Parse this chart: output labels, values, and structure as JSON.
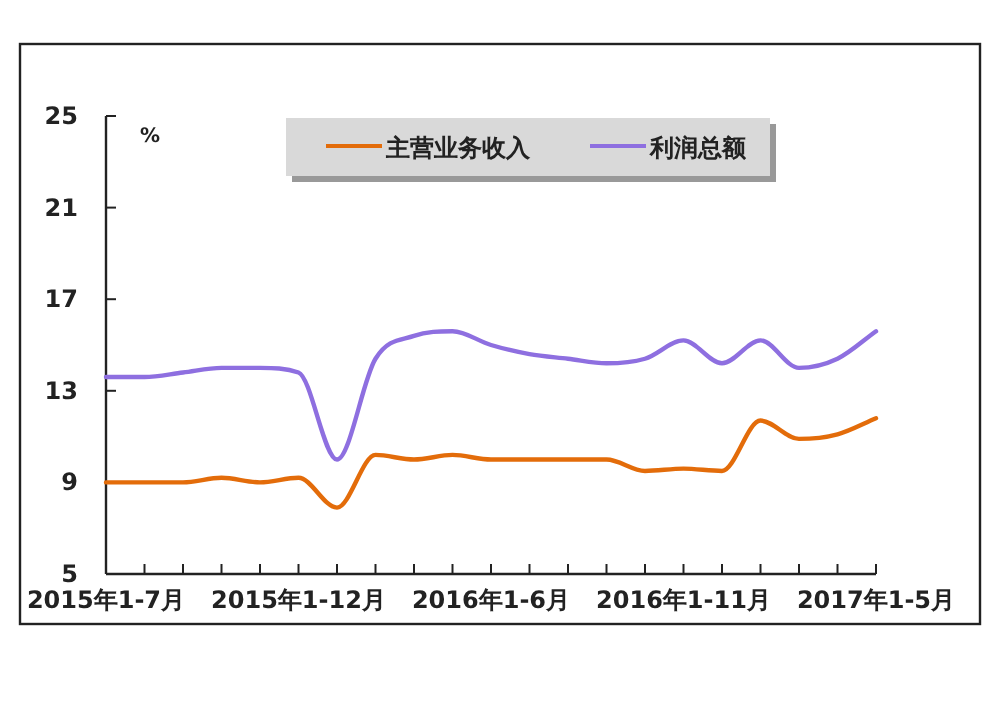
{
  "chart_data": {
    "type": "line",
    "ylabel": "%",
    "categories": [
      "2015年1-7月",
      null,
      null,
      null,
      null,
      "2015年1-12月",
      null,
      null,
      null,
      null,
      "2016年1-6月",
      null,
      null,
      null,
      null,
      "2016年1-11月",
      null,
      null,
      null,
      null,
      "2017年1-5月"
    ],
    "ylim": [
      5,
      25
    ],
    "yticks": [
      5,
      9,
      13,
      17,
      21,
      25
    ],
    "legend": "top",
    "series": [
      {
        "name": "主营业务收入",
        "color": "#e36c0a",
        "values": [
          9.0,
          9.0,
          9.0,
          9.2,
          9.0,
          9.2,
          7.9,
          10.2,
          10.0,
          10.2,
          10.0,
          10.0,
          10.0,
          10.0,
          9.5,
          9.6,
          9.5,
          11.7,
          10.9,
          11.1,
          11.8
        ]
      },
      {
        "name": "利润总额",
        "color": "#8e6fe0",
        "values": [
          13.6,
          13.6,
          13.8,
          14.0,
          14.0,
          13.8,
          10.0,
          14.4,
          15.4,
          15.6,
          15.0,
          14.6,
          14.4,
          14.2,
          14.4,
          15.2,
          14.2,
          15.2,
          14.0,
          14.4,
          15.6
        ]
      }
    ]
  }
}
